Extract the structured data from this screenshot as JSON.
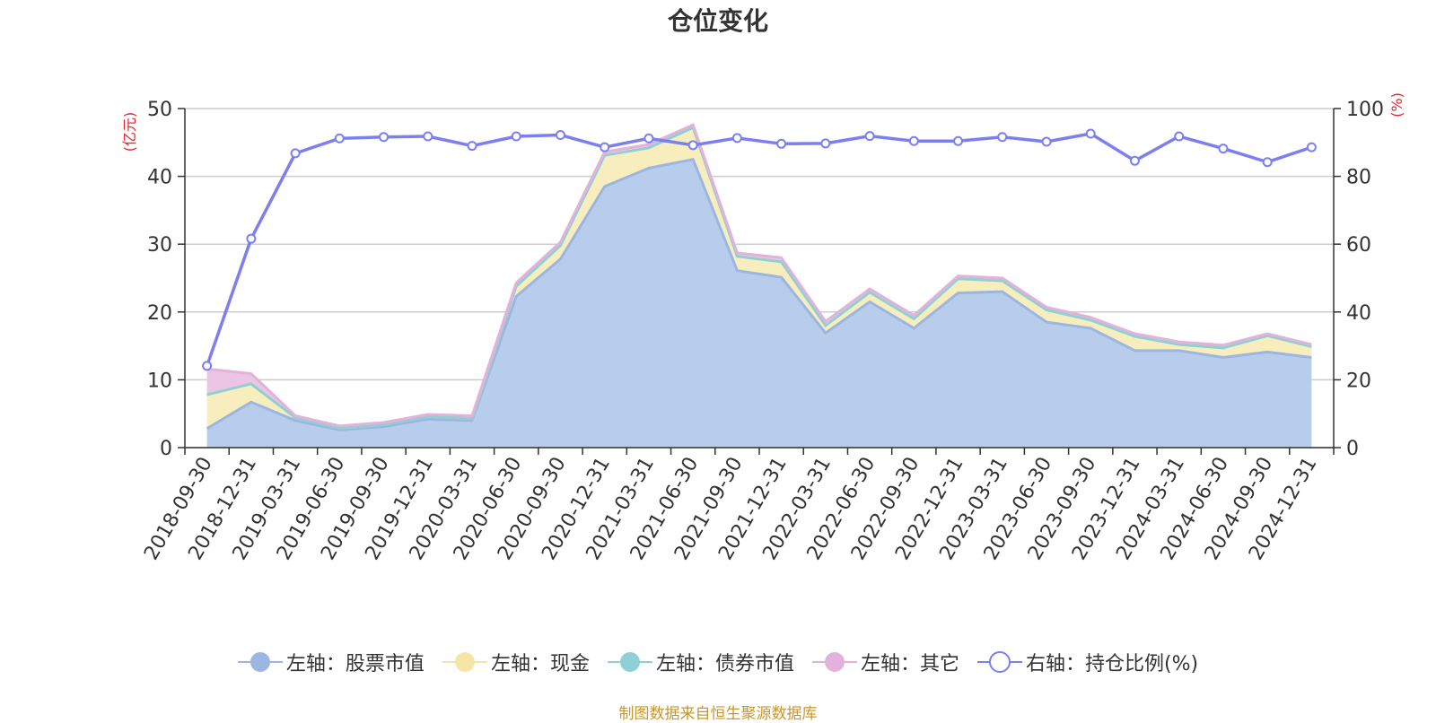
{
  "chart_data": {
    "type": "area",
    "title": "仓位变化",
    "left_axis_unit": "(亿元)",
    "right_axis_unit": "(%)",
    "categories": [
      "2018-09-30",
      "2018-12-31",
      "2019-03-31",
      "2019-06-30",
      "2019-09-30",
      "2019-12-31",
      "2020-03-31",
      "2020-06-30",
      "2020-09-30",
      "2020-12-31",
      "2021-03-31",
      "2021-06-30",
      "2021-09-30",
      "2021-12-31",
      "2022-03-31",
      "2022-06-30",
      "2022-09-30",
      "2022-12-31",
      "2023-03-31",
      "2023-06-30",
      "2023-09-30",
      "2023-12-31",
      "2024-03-31",
      "2024-06-30",
      "2024-09-30",
      "2024-12-31"
    ],
    "ylim_left": [
      0,
      50
    ],
    "yticks_left": [
      0,
      10,
      20,
      30,
      40,
      50
    ],
    "ylim_right": [
      0,
      100
    ],
    "yticks_right": [
      0,
      20,
      40,
      60,
      80,
      100
    ],
    "stacked": true,
    "grid": true,
    "series": [
      {
        "name": "左轴：股票市值",
        "axis": "left",
        "kind": "area",
        "color": "#9bb6e0",
        "fill": "#b8cdeb",
        "values": [
          2.8,
          6.7,
          4.0,
          2.6,
          3.1,
          4.2,
          4.0,
          22.3,
          27.8,
          38.5,
          41.2,
          42.5,
          26.1,
          25.1,
          16.9,
          21.5,
          17.6,
          22.8,
          23.0,
          18.5,
          17.6,
          14.3,
          14.3,
          13.3,
          14.1,
          13.3
        ]
      },
      {
        "name": "左轴：现金",
        "axis": "left",
        "kind": "area",
        "color": "#f5e6a8",
        "fill": "#f8edbc",
        "values": [
          5.0,
          2.7,
          0.4,
          0.3,
          0.3,
          0.4,
          0.3,
          1.5,
          2.0,
          4.6,
          3.0,
          4.7,
          2.1,
          2.3,
          1.1,
          1.4,
          1.4,
          2.1,
          1.6,
          1.8,
          1.2,
          2.1,
          0.9,
          1.4,
          2.4,
          1.6
        ]
      },
      {
        "name": "左轴：债券市值",
        "axis": "left",
        "kind": "area",
        "color": "#8fd0d4",
        "fill": "#a5dbde",
        "values": [
          0,
          0,
          0,
          0,
          0,
          0,
          0,
          0,
          0,
          0,
          0,
          0,
          0,
          0,
          0,
          0,
          0,
          0,
          0,
          0,
          0,
          0,
          0,
          0,
          0,
          0
        ]
      },
      {
        "name": "左轴：其它",
        "axis": "left",
        "kind": "area",
        "color": "#e3b2da",
        "fill": "#ebc6e4",
        "values": [
          3.8,
          1.5,
          0.3,
          0.3,
          0.3,
          0.3,
          0.4,
          0.5,
          0.5,
          0.5,
          0.5,
          0.4,
          0.5,
          0.6,
          0.6,
          0.5,
          0.5,
          0.4,
          0.4,
          0.4,
          0.4,
          0.4,
          0.4,
          0.4,
          0.3,
          0.3
        ]
      },
      {
        "name": "右轴：持仓比例(%)",
        "axis": "right",
        "kind": "line",
        "color": "#7b7ff0",
        "values": [
          24.1,
          61.6,
          86.8,
          91.2,
          91.6,
          91.8,
          89.0,
          91.8,
          92.2,
          88.6,
          91.2,
          89.2,
          91.3,
          89.6,
          89.7,
          91.9,
          90.4,
          90.4,
          91.6,
          90.2,
          92.6,
          84.6,
          91.8,
          88.2,
          84.2,
          88.6
        ]
      }
    ],
    "legend_position": "bottom"
  },
  "source_note": "制图数据来自恒生聚源数据库"
}
